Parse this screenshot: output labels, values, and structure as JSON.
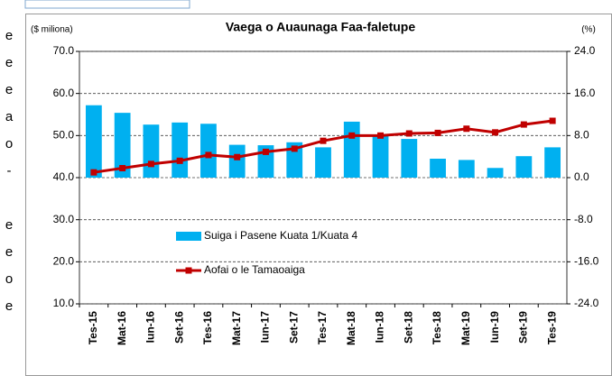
{
  "left_text": [
    "e",
    "e",
    "e",
    "a",
    "o",
    "-",
    "e",
    "e",
    "o",
    "e"
  ],
  "chart_data": {
    "type": "bar-line",
    "title": "Vaega o Auaunaga Faa-faletupe",
    "y_label": "($ miliona)",
    "y2_label": "(%)",
    "categories": [
      "Tes-15",
      "Mat-16",
      "Iun-16",
      "Set-16",
      "Tes-16",
      "Mat-17",
      "Iun-17",
      "Set-17",
      "Tes-17",
      "Mat-18",
      "Iun-18",
      "Set-18",
      "Tes-18",
      "Mat-19",
      "Iun-19",
      "Set-19",
      "Tes-19"
    ],
    "series": [
      {
        "name": "Suiga i Pasene Kuata 1/Kuata 4",
        "color": "#00b0f0",
        "kind": "bar",
        "axis": "y",
        "values": [
          57.2,
          55.4,
          52.6,
          53.1,
          52.8,
          47.8,
          47.7,
          48.4,
          47.2,
          53.3,
          50.0,
          49.2,
          44.5,
          44.2,
          42.3,
          45.1,
          47.2
        ]
      },
      {
        "name": "Aofai o le Tamaoaiga",
        "color": "#c00000",
        "kind": "line",
        "axis": "y2",
        "values": [
          1.0,
          1.8,
          2.6,
          3.2,
          4.3,
          3.9,
          4.9,
          5.5,
          7.0,
          8.0,
          8.0,
          8.4,
          8.5,
          9.3,
          8.6,
          10.1,
          10.8
        ]
      }
    ],
    "bar_baseline": 40,
    "ylim": [
      10,
      70
    ],
    "yticks": [
      {
        "value": 10,
        "label": "10.0"
      },
      {
        "value": 20,
        "label": "20.0"
      },
      {
        "value": 30,
        "label": "30.0"
      },
      {
        "value": 40,
        "label": "40.0"
      },
      {
        "value": 50,
        "label": "50.0"
      },
      {
        "value": 60,
        "label": "60.0"
      },
      {
        "value": 70,
        "label": "70.0"
      }
    ],
    "y2lim": [
      -24,
      24
    ],
    "y2ticks": [
      {
        "value": -24,
        "label": "-24.0"
      },
      {
        "value": -16,
        "label": "-16.0"
      },
      {
        "value": -8,
        "label": "-8.0"
      },
      {
        "value": 0,
        "label": "0.0"
      },
      {
        "value": 8,
        "label": "8.0"
      },
      {
        "value": 16,
        "label": "16.0"
      },
      {
        "value": 24,
        "label": "24.0"
      }
    ],
    "grid": true
  }
}
